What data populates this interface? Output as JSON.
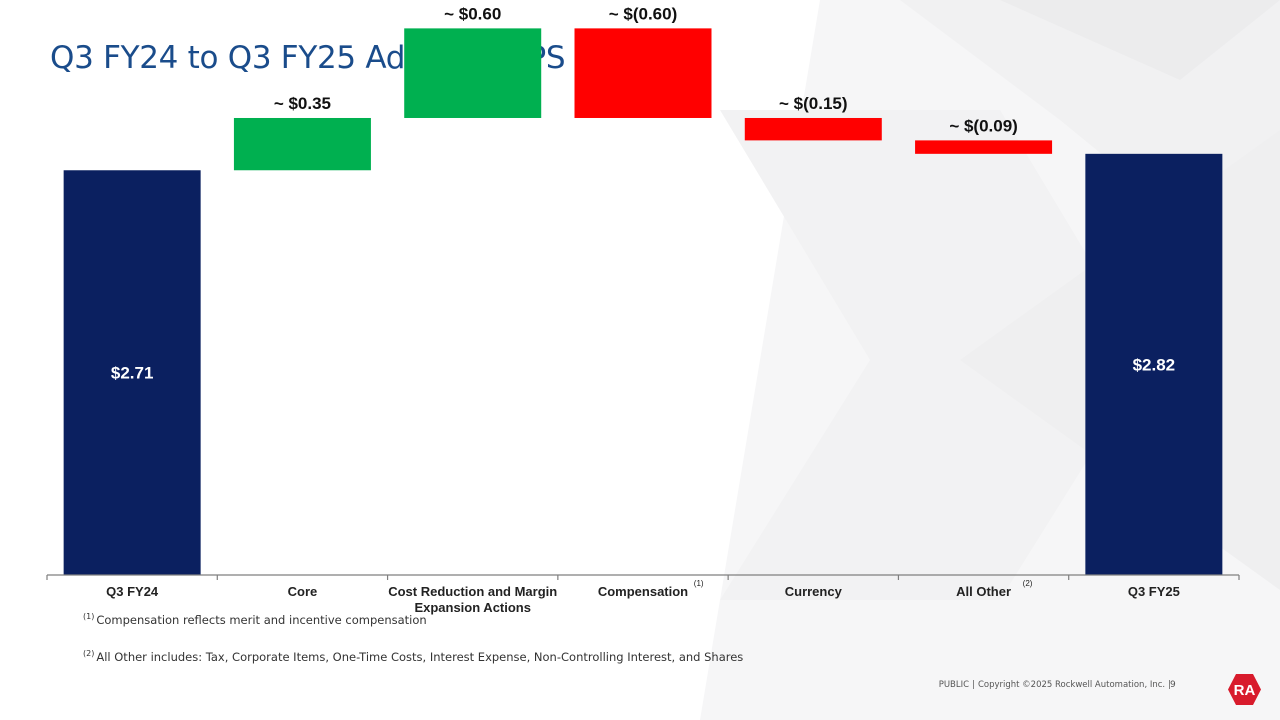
{
  "slide": {
    "title": "Q3 FY24 to Q3 FY25 Adjusted EPS Walk",
    "footnotes": [
      {
        "marker": "(1)",
        "text": "Compensation reflects merit and incentive compensation"
      },
      {
        "marker": "(2)",
        "text": "All Other includes: Tax, Corporate Items, One-Time Costs, Interest Expense, Non-Controlling Interest, and Shares"
      }
    ],
    "footer": {
      "classification": "PUBLIC",
      "copyright": "Copyright ©2025 Rockwell Automation, Inc.",
      "page_number": "9",
      "logo_text": "RA"
    }
  },
  "colors": {
    "total": "#0b2060",
    "increase": "#00b050",
    "decrease": "#ff0000",
    "title": "#1a4c8b",
    "logo": "#d81b2c"
  },
  "chart_data": {
    "type": "bar",
    "subtype": "waterfall",
    "title": "Q3 FY24 to Q3 FY25 Adjusted EPS Walk",
    "xlabel": "",
    "ylabel": "",
    "grid": false,
    "legend": "none",
    "ylim": [
      0,
      3.85
    ],
    "categories": [
      {
        "label_lines": [
          "Q3 FY24"
        ],
        "sup": ""
      },
      {
        "label_lines": [
          "Core"
        ],
        "sup": ""
      },
      {
        "label_lines": [
          "Cost Reduction and Margin",
          "Expansion Actions"
        ],
        "sup": ""
      },
      {
        "label_lines": [
          "Compensation"
        ],
        "sup": "(1)"
      },
      {
        "label_lines": [
          "Currency"
        ],
        "sup": ""
      },
      {
        "label_lines": [
          "All Other"
        ],
        "sup": "(2)"
      },
      {
        "label_lines": [
          "Q3 FY25"
        ],
        "sup": ""
      }
    ],
    "steps": [
      {
        "kind": "total",
        "value": 2.71,
        "label": "$2.71"
      },
      {
        "kind": "delta",
        "value": 0.35,
        "label": "~ $0.35"
      },
      {
        "kind": "delta",
        "value": 0.6,
        "label": "~ $0.60"
      },
      {
        "kind": "delta",
        "value": -0.6,
        "label": "~ $(0.60)"
      },
      {
        "kind": "delta",
        "value": -0.15,
        "label": "~ $(0.15)"
      },
      {
        "kind": "delta",
        "value": -0.09,
        "label": "~ $(0.09)"
      },
      {
        "kind": "total",
        "value": 2.82,
        "label": "$2.82"
      }
    ]
  }
}
